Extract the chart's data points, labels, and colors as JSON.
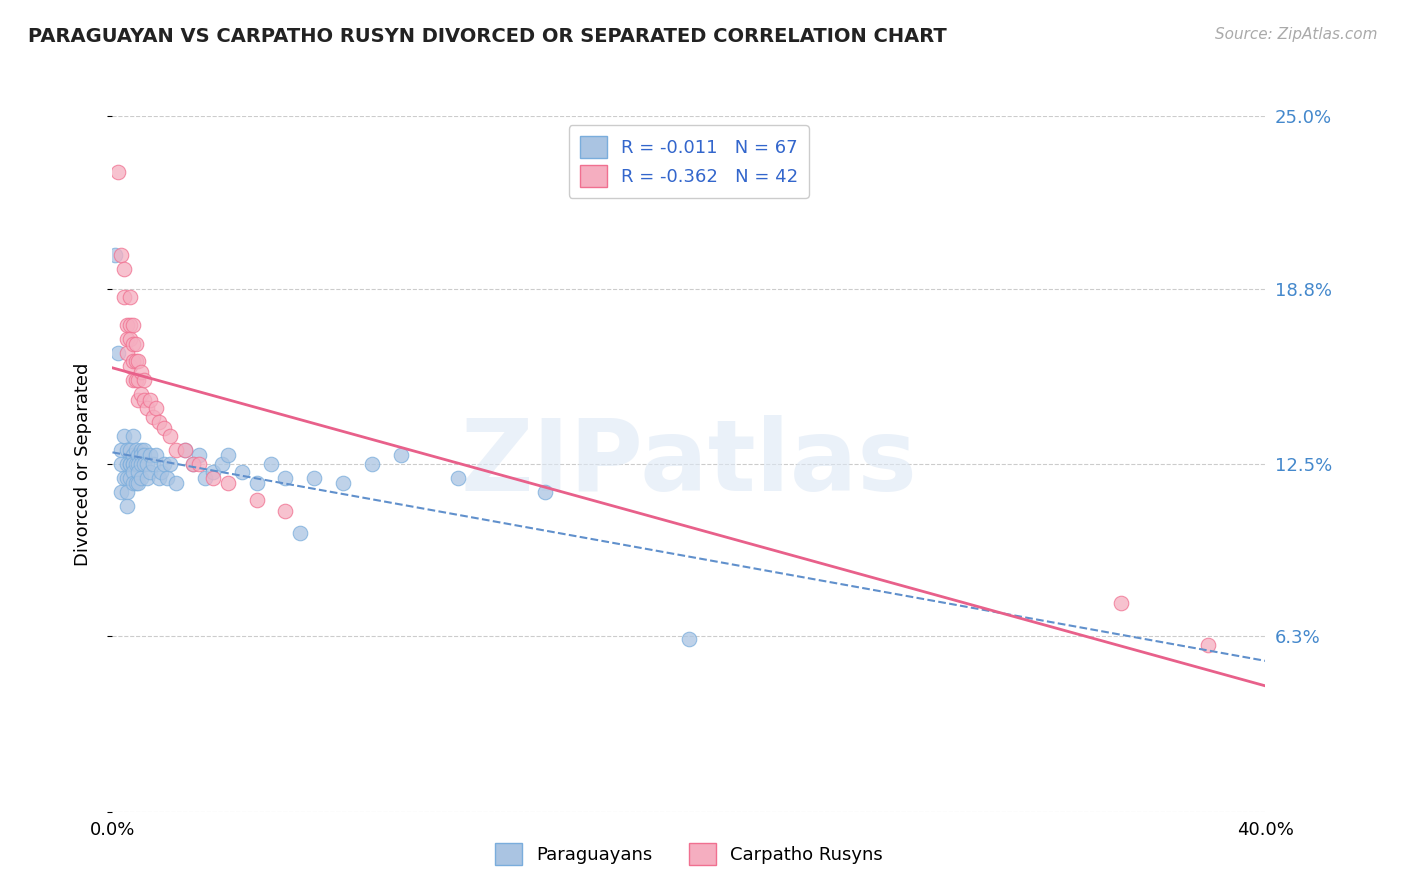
{
  "title": "PARAGUAYAN VS CARPATHO RUSYN DIVORCED OR SEPARATED CORRELATION CHART",
  "source": "Source: ZipAtlas.com",
  "watermark": "ZIPatlas",
  "ylabel": "Divorced or Separated",
  "xlim": [
    0.0,
    0.4
  ],
  "ylim": [
    0.0,
    0.25
  ],
  "xtick_labels": [
    "0.0%",
    "40.0%"
  ],
  "ytick_labels": [
    "",
    "6.3%",
    "12.5%",
    "18.8%",
    "25.0%"
  ],
  "ytick_values": [
    0.0,
    0.063,
    0.125,
    0.188,
    0.25
  ],
  "legend_r1": "R = -0.011",
  "legend_n1": "N = 67",
  "legend_r2": "R = -0.362",
  "legend_n2": "N = 42",
  "color_paraguayan": "#aac4e2",
  "color_carpatho": "#f5aec0",
  "color_edge_paraguayan": "#7aaddc",
  "color_edge_carpatho": "#f07090",
  "color_line_paraguayan": "#6090cc",
  "color_line_carpatho": "#e8608a",
  "color_legend_text": "#3366cc",
  "color_ytick": "#4488cc",
  "background_color": "#ffffff",
  "grid_color": "#cccccc",
  "paraguayan_x": [
    0.001,
    0.002,
    0.003,
    0.003,
    0.003,
    0.004,
    0.004,
    0.005,
    0.005,
    0.005,
    0.005,
    0.005,
    0.006,
    0.006,
    0.006,
    0.006,
    0.007,
    0.007,
    0.007,
    0.007,
    0.007,
    0.007,
    0.008,
    0.008,
    0.008,
    0.009,
    0.009,
    0.009,
    0.009,
    0.01,
    0.01,
    0.01,
    0.01,
    0.011,
    0.011,
    0.011,
    0.012,
    0.012,
    0.013,
    0.013,
    0.014,
    0.015,
    0.016,
    0.017,
    0.018,
    0.019,
    0.02,
    0.022,
    0.025,
    0.028,
    0.03,
    0.032,
    0.035,
    0.038,
    0.04,
    0.045,
    0.05,
    0.055,
    0.06,
    0.065,
    0.07,
    0.08,
    0.09,
    0.1,
    0.12,
    0.15,
    0.2
  ],
  "paraguayan_y": [
    0.2,
    0.165,
    0.13,
    0.125,
    0.115,
    0.135,
    0.12,
    0.13,
    0.125,
    0.12,
    0.115,
    0.11,
    0.13,
    0.125,
    0.125,
    0.12,
    0.135,
    0.128,
    0.125,
    0.125,
    0.122,
    0.118,
    0.13,
    0.125,
    0.118,
    0.128,
    0.125,
    0.122,
    0.118,
    0.13,
    0.128,
    0.125,
    0.12,
    0.13,
    0.128,
    0.125,
    0.125,
    0.12,
    0.128,
    0.122,
    0.125,
    0.128,
    0.12,
    0.122,
    0.125,
    0.12,
    0.125,
    0.118,
    0.13,
    0.125,
    0.128,
    0.12,
    0.122,
    0.125,
    0.128,
    0.122,
    0.118,
    0.125,
    0.12,
    0.1,
    0.12,
    0.118,
    0.125,
    0.128,
    0.12,
    0.115,
    0.062
  ],
  "carpatho_x": [
    0.002,
    0.003,
    0.004,
    0.004,
    0.005,
    0.005,
    0.005,
    0.006,
    0.006,
    0.006,
    0.006,
    0.007,
    0.007,
    0.007,
    0.007,
    0.008,
    0.008,
    0.008,
    0.009,
    0.009,
    0.009,
    0.01,
    0.01,
    0.011,
    0.011,
    0.012,
    0.013,
    0.014,
    0.015,
    0.016,
    0.018,
    0.02,
    0.022,
    0.025,
    0.028,
    0.03,
    0.035,
    0.04,
    0.05,
    0.06,
    0.35,
    0.38
  ],
  "carpatho_y": [
    0.23,
    0.2,
    0.195,
    0.185,
    0.175,
    0.17,
    0.165,
    0.185,
    0.175,
    0.17,
    0.16,
    0.175,
    0.168,
    0.162,
    0.155,
    0.168,
    0.162,
    0.155,
    0.162,
    0.155,
    0.148,
    0.158,
    0.15,
    0.155,
    0.148,
    0.145,
    0.148,
    0.142,
    0.145,
    0.14,
    0.138,
    0.135,
    0.13,
    0.13,
    0.125,
    0.125,
    0.12,
    0.118,
    0.112,
    0.108,
    0.075,
    0.06
  ]
}
